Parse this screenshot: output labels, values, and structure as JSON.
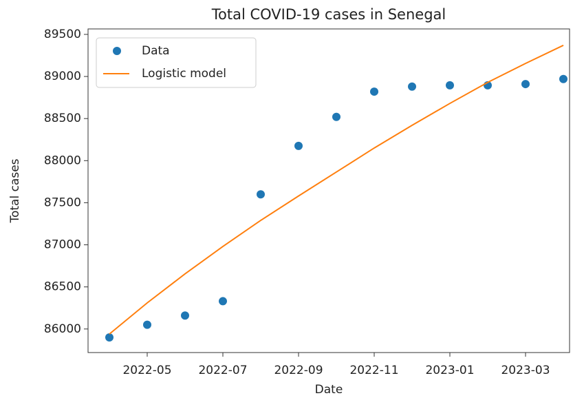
{
  "chart_data": {
    "type": "scatter",
    "title": "Total COVID-19 cases in Senegal",
    "x_label": "Date",
    "y_label": "Total cases",
    "x": [
      "2022-04",
      "2022-05",
      "2022-06",
      "2022-07",
      "2022-08",
      "2022-09",
      "2022-10",
      "2022-11",
      "2022-12",
      "2023-01",
      "2023-02",
      "2023-03",
      "2023-04"
    ],
    "series": [
      {
        "name": "Data",
        "type": "scatter",
        "color": "#1f77b4",
        "values": [
          85900,
          86050,
          86160,
          86330,
          87600,
          88175,
          88520,
          88820,
          88880,
          88895,
          88895,
          88910,
          88970
        ]
      },
      {
        "name": "Logistic model",
        "type": "line",
        "color": "#ff7f0e",
        "values": [
          85940,
          86310,
          86655,
          86980,
          87290,
          87580,
          87865,
          88150,
          88420,
          88680,
          88930,
          89155,
          89370
        ]
      }
    ],
    "xticks": [
      "2022-05",
      "2022-07",
      "2022-09",
      "2022-11",
      "2023-01",
      "2023-03"
    ],
    "ylim": [
      85720,
      89565
    ],
    "yticks": [
      86000,
      86500,
      87000,
      87500,
      88000,
      88500,
      89000,
      89500
    ],
    "legend": "upper left"
  }
}
